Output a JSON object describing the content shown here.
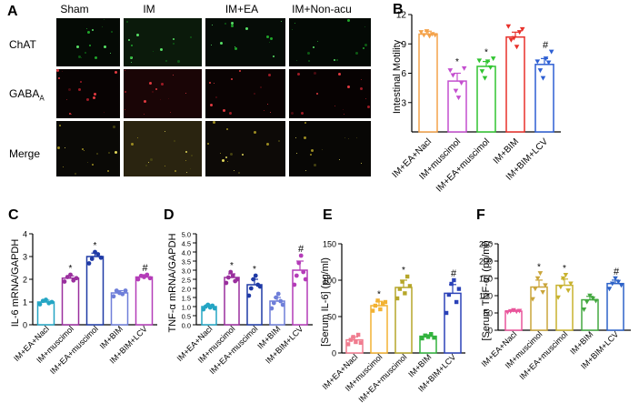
{
  "panelA": {
    "letter": "A",
    "columns": [
      "Sham",
      "IM",
      "IM+EA",
      "IM+Non-acu"
    ],
    "rows": [
      "ChAT",
      "GABAA",
      "Merge"
    ],
    "row_label_main": "GABA",
    "row_label_sub": "A"
  },
  "chart_data": [
    {
      "panel": "B",
      "type": "bar",
      "ylabel": "Intestinal Motility",
      "ylim": [
        0,
        12
      ],
      "yticks": [
        3,
        6,
        9,
        12
      ],
      "categories": [
        "IM+EA+Nacl",
        "IM+muscimol",
        "IM+EA+muscimol",
        "IM+BIM",
        "IM+BIM+LCV"
      ],
      "values": [
        10.0,
        5.2,
        6.7,
        9.7,
        6.9
      ],
      "errors": [
        0.3,
        0.8,
        0.5,
        0.5,
        0.6
      ],
      "annotations": [
        "",
        "*",
        "*",
        "",
        "#"
      ],
      "colors": [
        "#f4a24a",
        "#c44fcf",
        "#31c431",
        "#e8302a",
        "#2d5fd3"
      ],
      "points": [
        [
          10.2,
          9.9,
          10.3,
          9.8,
          10.0,
          9.9
        ],
        [
          6.3,
          5.8,
          4.2,
          3.5,
          5.0,
          6.5
        ],
        [
          7.3,
          6.2,
          5.5,
          7.2,
          6.6,
          7.5
        ],
        [
          10.8,
          9.4,
          9.6,
          8.7,
          10.2,
          10.5
        ],
        [
          7.2,
          6.3,
          5.5,
          7.5,
          7.1,
          8.2
        ]
      ]
    },
    {
      "panel": "C",
      "type": "bar",
      "ylabel": "IL-6 mRNA/GAPDH",
      "ylim": [
        0,
        4
      ],
      "yticks": [
        0,
        1,
        2,
        3,
        4
      ],
      "categories": [
        "IM+EA+Nacl",
        "IM+muscimol",
        "IM+EA+muscimol",
        "IM+BIM",
        "IM+BIM+LCV"
      ],
      "values": [
        1.0,
        2.05,
        3.0,
        1.4,
        2.1
      ],
      "errors": [
        0.08,
        0.1,
        0.15,
        0.1,
        0.1
      ],
      "annotations": [
        "",
        "*",
        "*",
        "",
        "#"
      ],
      "colors": [
        "#24a5c4",
        "#9a2f9e",
        "#1f3aa6",
        "#6f7fd9",
        "#b43cb8"
      ],
      "points": [
        [
          0.9,
          1.05,
          1.1,
          0.95,
          1.0
        ],
        [
          1.9,
          2.1,
          2.2,
          1.95,
          2.05
        ],
        [
          2.7,
          2.9,
          3.2,
          3.1,
          2.95
        ],
        [
          1.25,
          1.5,
          1.4,
          1.35,
          1.5
        ],
        [
          2.0,
          2.15,
          2.1,
          2.2,
          2.05
        ]
      ]
    },
    {
      "panel": "D",
      "type": "bar",
      "ylabel": "TNF-α mRNA/GAPDH",
      "ylim": [
        0,
        5
      ],
      "yticks": [
        0,
        0.5,
        1,
        1.5,
        2,
        2.5,
        3,
        3.5,
        4,
        4.5,
        5
      ],
      "yticklabels": [
        "0.0",
        "0.5",
        "1.0",
        "1.5",
        "2.0",
        "2.5",
        "3.0",
        "3.5",
        "4.0",
        "4.5",
        "5.0"
      ],
      "categories": [
        "IM+EA+Nacl",
        "IM+muscimol",
        "IM+EA+muscimol",
        "IM+BIM",
        "IM+BIM+LCV"
      ],
      "values": [
        1.0,
        2.6,
        2.2,
        1.3,
        3.0
      ],
      "errors": [
        0.1,
        0.2,
        0.3,
        0.2,
        0.5
      ],
      "annotations": [
        "",
        "*",
        "*",
        "",
        "#"
      ],
      "colors": [
        "#24a5c4",
        "#9a2f9e",
        "#1f3aa6",
        "#6f7fd9",
        "#b43cb8"
      ],
      "points": [
        [
          0.85,
          1.0,
          1.1,
          0.95,
          1.05,
          0.9
        ],
        [
          2.3,
          2.6,
          2.9,
          2.7,
          2.4,
          2.5
        ],
        [
          1.6,
          2.0,
          2.5,
          2.7,
          2.2,
          2.1
        ],
        [
          0.9,
          1.2,
          1.5,
          1.7,
          1.3,
          1.1
        ],
        [
          2.2,
          2.7,
          3.4,
          3.8,
          2.9,
          2.5
        ]
      ]
    },
    {
      "panel": "E",
      "type": "bar",
      "ylabel": "[Serum IL-6]   (pg/ml)",
      "ylim": [
        0,
        150
      ],
      "yticks": [
        0,
        50,
        100,
        150
      ],
      "categories": [
        "IM+EA+Nacl",
        "IM+muscimol",
        "IM+EA+muscimol",
        "IM+BIM",
        "IM+BIM+LCV"
      ],
      "values": [
        18,
        65,
        90,
        23,
        82
      ],
      "errors": [
        4,
        6,
        10,
        2,
        12
      ],
      "annotations": [
        "",
        "*",
        "*",
        "",
        "#"
      ],
      "colors": [
        "#f07c8f",
        "#f2b233",
        "#b6a62a",
        "#32b33e",
        "#2b42b8"
      ],
      "points": [
        [
          12,
          18,
          22,
          15,
          25,
          14
        ],
        [
          58,
          65,
          72,
          60,
          68,
          70
        ],
        [
          75,
          88,
          98,
          82,
          105,
          92
        ],
        [
          20,
          24,
          22,
          26,
          21
        ],
        [
          55,
          80,
          95,
          100,
          70,
          88
        ]
      ]
    },
    {
      "panel": "F",
      "type": "bar",
      "ylabel": "[Serum TNF-α] (pg/ml)",
      "ylim": [
        0,
        250
      ],
      "yticks": [
        0,
        50,
        100,
        150,
        200,
        250
      ],
      "categories": [
        "IM+EA+Nacl",
        "IM+muscimol",
        "IM+EA+muscimol",
        "IM+BIM",
        "IM+BIM+LCV"
      ],
      "values": [
        55,
        125,
        130,
        88,
        135
      ],
      "errors": [
        3,
        20,
        18,
        10,
        10
      ],
      "annotations": [
        "",
        "*",
        "*",
        "",
        "#"
      ],
      "colors": [
        "#e9559b",
        "#caa53a",
        "#c8b22e",
        "#43a840",
        "#2d62c8"
      ],
      "points": [
        [
          52,
          55,
          58,
          54,
          56
        ],
        [
          90,
          120,
          150,
          165,
          110,
          130
        ],
        [
          95,
          125,
          150,
          160,
          115,
          135
        ],
        [
          60,
          82,
          100,
          92,
          85
        ],
        [
          120,
          135,
          150,
          140,
          130
        ]
      ]
    }
  ]
}
